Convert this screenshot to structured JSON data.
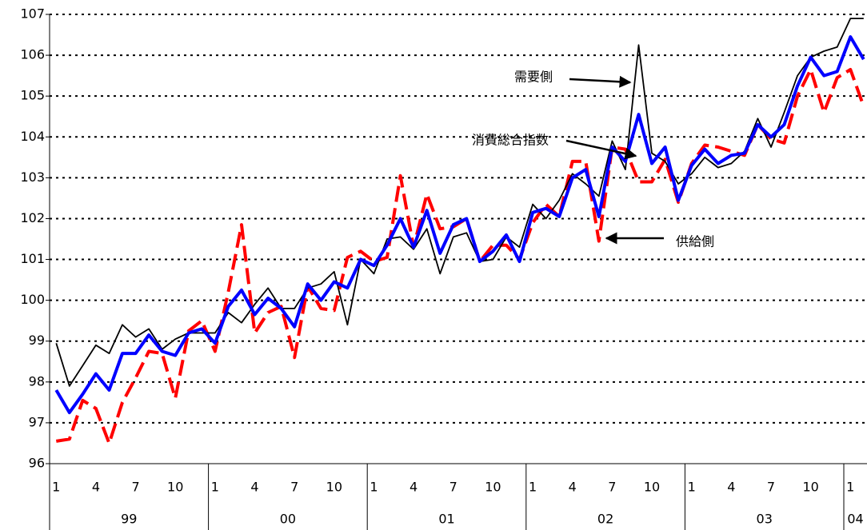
{
  "chart_data": {
    "type": "line",
    "categories": [
      "1",
      null,
      null,
      "4",
      null,
      null,
      "7",
      null,
      null,
      "10",
      null,
      null,
      "1",
      null,
      null,
      "4",
      null,
      null,
      "7",
      null,
      null,
      "10",
      null,
      null,
      "1",
      null,
      null,
      "4",
      null,
      null,
      "7",
      null,
      null,
      "10",
      null,
      null,
      "1",
      null,
      null,
      "4",
      null,
      null,
      "7",
      null,
      null,
      "10",
      null,
      null,
      "1",
      null,
      null,
      "4",
      null,
      null,
      "7",
      null,
      null,
      "10",
      null,
      null,
      "1",
      null
    ],
    "groups": [
      "99",
      "00",
      "01",
      "02",
      "03",
      "04"
    ],
    "ylim": [
      96,
      107
    ],
    "yticks": [
      96,
      97,
      98,
      99,
      100,
      101,
      102,
      103,
      104,
      105,
      106,
      107
    ],
    "grid": true,
    "series": [
      {
        "name": "需要側",
        "color": "#000000",
        "style": "solid",
        "values": [
          98.95,
          97.9,
          98.4,
          98.9,
          98.7,
          99.4,
          99.1,
          99.3,
          98.8,
          99.05,
          99.2,
          99.2,
          99.2,
          99.7,
          99.45,
          99.9,
          100.3,
          99.8,
          99.8,
          100.3,
          100.4,
          100.7,
          99.4,
          101.0,
          100.65,
          101.5,
          101.55,
          101.25,
          101.75,
          100.65,
          101.55,
          101.65,
          100.95,
          101.0,
          101.55,
          101.3,
          102.35,
          102.0,
          102.45,
          103.1,
          102.85,
          102.55,
          103.9,
          103.2,
          106.25,
          103.6,
          103.4,
          102.85,
          103.1,
          103.5,
          103.25,
          103.35,
          103.65,
          104.45,
          103.75,
          104.6,
          105.5,
          105.95,
          106.1,
          106.2,
          106.9,
          106.9
        ]
      },
      {
        "name": "消費総合指数",
        "color": "#0000ff",
        "style": "thick",
        "values": [
          97.8,
          97.25,
          97.7,
          98.2,
          97.8,
          98.7,
          98.7,
          99.15,
          98.75,
          98.65,
          99.2,
          99.3,
          98.95,
          99.85,
          100.25,
          99.65,
          100.05,
          99.8,
          99.35,
          100.4,
          100.0,
          100.45,
          100.3,
          101.0,
          100.85,
          101.35,
          102.0,
          101.3,
          102.2,
          101.15,
          101.85,
          102.0,
          100.95,
          101.2,
          101.6,
          100.95,
          102.15,
          102.25,
          102.05,
          103.0,
          103.2,
          102.05,
          103.75,
          103.4,
          104.55,
          103.35,
          103.75,
          102.45,
          103.3,
          103.7,
          103.35,
          103.55,
          103.6,
          104.3,
          104.0,
          104.3,
          105.25,
          105.95,
          105.5,
          105.6,
          106.45,
          105.9
        ]
      },
      {
        "name": "供給側",
        "color": "#ff0000",
        "style": "dashed",
        "values": [
          96.55,
          96.6,
          97.55,
          97.35,
          96.5,
          97.5,
          98.1,
          98.75,
          98.7,
          97.6,
          99.25,
          99.5,
          98.75,
          100.2,
          101.85,
          99.2,
          99.7,
          99.85,
          98.6,
          100.35,
          99.8,
          99.75,
          101.05,
          101.2,
          100.95,
          101.05,
          103.05,
          101.3,
          102.6,
          101.75,
          101.8,
          102.0,
          100.95,
          101.35,
          101.35,
          101.0,
          101.9,
          102.35,
          102.05,
          103.4,
          103.4,
          101.45,
          103.75,
          103.7,
          102.9,
          102.9,
          103.45,
          102.4,
          103.35,
          103.8,
          103.75,
          103.65,
          103.55,
          104.3,
          103.95,
          103.85,
          105.0,
          105.65,
          104.6,
          105.45,
          105.65,
          104.75
        ]
      }
    ]
  }
}
